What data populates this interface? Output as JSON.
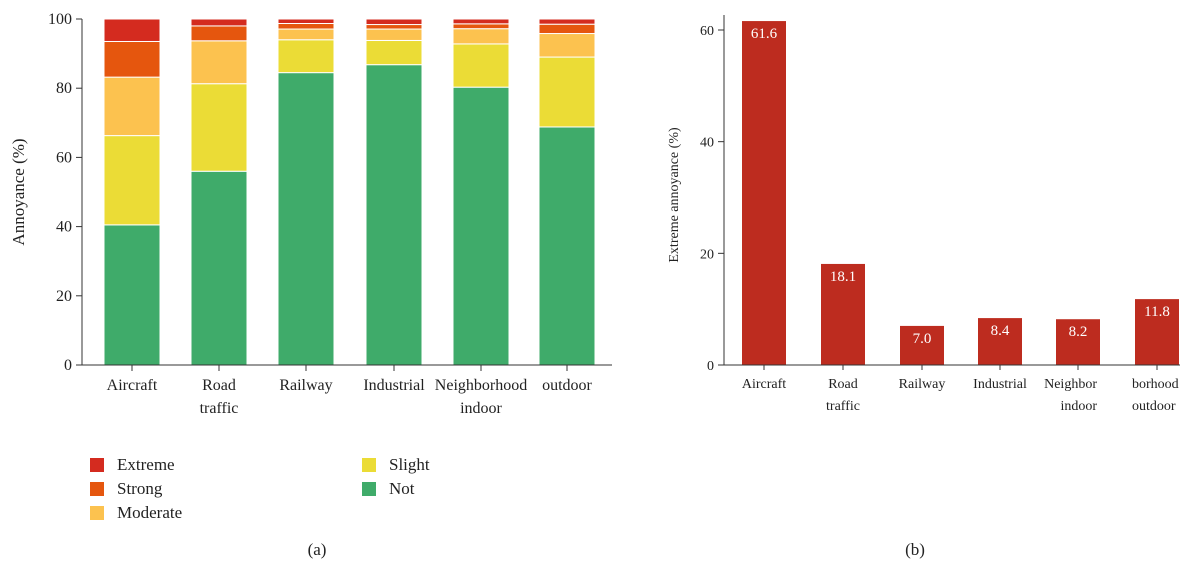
{
  "chart_data": [
    {
      "type": "bar",
      "stacked": true,
      "panel_label": "(a)",
      "categories": [
        [
          "Aircraft"
        ],
        [
          "Road",
          "traffic"
        ],
        [
          "Railway"
        ],
        [
          "Industrial"
        ],
        [
          "Neighborhood",
          "indoor"
        ],
        [
          "outdoor"
        ]
      ],
      "ylabel": "Annoyance (%)",
      "ylim": [
        0,
        100
      ],
      "yticks": [
        0,
        20,
        40,
        60,
        80,
        100
      ],
      "legend_position": "bottom",
      "series": [
        {
          "name": "Not",
          "color": "#3fab6a",
          "values": [
            40.5,
            56.0,
            84.5,
            86.8,
            80.3,
            68.8
          ]
        },
        {
          "name": "Slight",
          "color": "#ebdc36",
          "values": [
            25.8,
            25.3,
            9.5,
            7.0,
            12.5,
            20.2
          ]
        },
        {
          "name": "Moderate",
          "color": "#fcc24f",
          "values": [
            16.9,
            12.4,
            3.1,
            3.3,
            4.4,
            6.8
          ]
        },
        {
          "name": "Strong",
          "color": "#e5560e",
          "values": [
            10.3,
            4.3,
            1.6,
            1.3,
            1.4,
            2.7
          ]
        },
        {
          "name": "Extreme",
          "color": "#d42b1f",
          "values": [
            6.5,
            2.0,
            1.3,
            1.6,
            1.4,
            1.5
          ]
        }
      ],
      "legend_order": [
        "Extreme",
        "Strong",
        "Moderate",
        "Slight",
        "Not"
      ]
    },
    {
      "type": "bar",
      "panel_label": "(b)",
      "categories": [
        [
          "Aircraft"
        ],
        [
          "Road",
          "traffic"
        ],
        [
          "Railway"
        ],
        [
          "Industrial"
        ],
        [
          "Neighbor",
          "indoor"
        ],
        [
          "borhood",
          "outdoor"
        ]
      ],
      "values": [
        61.6,
        18.1,
        7.0,
        8.4,
        8.2,
        11.8
      ],
      "data_labels": [
        "61.6",
        "18.1",
        "7.0",
        "8.4",
        "8.2",
        "11.8"
      ],
      "color": "#bd2c1f",
      "ylabel": "Extreme annoyance (%)",
      "ylim": [
        0,
        62
      ],
      "yticks": [
        0,
        20,
        40,
        60
      ]
    }
  ]
}
